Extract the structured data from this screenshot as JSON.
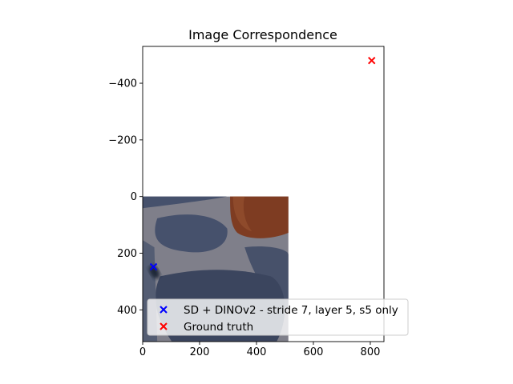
{
  "chart_data": {
    "type": "scatter",
    "title": "Image Correspondence",
    "xlabel": "",
    "ylabel": "",
    "xlim": [
      0,
      848
    ],
    "ylim": [
      512,
      -530
    ],
    "y_inverted": true,
    "x_ticks": [
      0,
      200,
      400,
      600,
      800
    ],
    "x_tick_labels": [
      "0",
      "200",
      "400",
      "600",
      "800"
    ],
    "y_ticks": [
      -400,
      -200,
      0,
      200,
      400
    ],
    "y_tick_labels": [
      "−400",
      "−200",
      "0",
      "200",
      "400"
    ],
    "grid": false,
    "legend_position": "lower-right",
    "background_image": {
      "extent": [
        0,
        512,
        0,
        512
      ],
      "content": "photo"
    },
    "series": [
      {
        "name": "SD + DINOv2 - stride 7, layer 5, s5 only",
        "marker": "x",
        "color": "#0000ff",
        "points": [
          {
            "x": 38,
            "y": 248
          }
        ]
      },
      {
        "name": "Ground truth",
        "marker": "x",
        "color": "#ff0000",
        "points": [
          {
            "x": 805,
            "y": -480
          }
        ]
      }
    ]
  }
}
